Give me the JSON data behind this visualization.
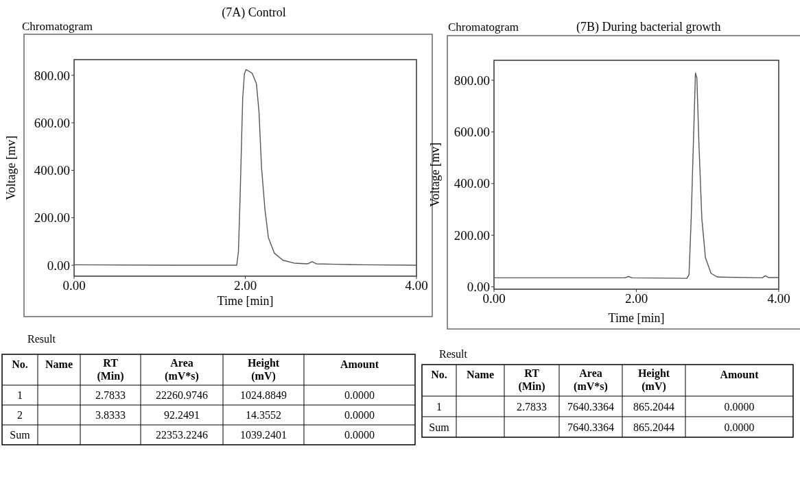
{
  "chart_data": [
    {
      "type": "line",
      "title": "(7A) Control",
      "subtitle": "Chromatogram",
      "xlabel": "Time [min]",
      "ylabel": "Voltage [mv]",
      "xlim": [
        0,
        4
      ],
      "ylim": [
        -46,
        866
      ],
      "xticks": [
        {
          "value": 0,
          "label": "0.00"
        },
        {
          "value": 2,
          "label": "2.00"
        },
        {
          "value": 4,
          "label": "4.00"
        }
      ],
      "yticks": [
        {
          "value": 0,
          "label": "0.00"
        },
        {
          "value": 200,
          "label": "200.00"
        },
        {
          "value": 400,
          "label": "400.00"
        },
        {
          "value": 600,
          "label": "600.00"
        },
        {
          "value": 800,
          "label": "800.00"
        }
      ],
      "series": [
        {
          "color": "#555555",
          "x": [
            0,
            1.42,
            1.9,
            1.92,
            1.94,
            1.97,
            1.99,
            2.01,
            2.08,
            2.13,
            2.16,
            2.19,
            2.23,
            2.27,
            2.34,
            2.44,
            2.57,
            2.73,
            2.78,
            2.83,
            3.06,
            3.39,
            4
          ],
          "values": [
            2,
            0,
            0,
            57,
            293,
            706,
            806,
            824,
            809,
            765,
            647,
            411,
            234,
            116,
            51,
            21,
            9,
            6,
            15,
            6,
            4,
            2,
            0
          ]
        }
      ]
    },
    {
      "type": "line",
      "title": "(7B) During bacterial growth",
      "subtitle": "Chromatogram",
      "xlabel": "Time [min]",
      "ylabel": "Voltage [mv]",
      "xlim": [
        0,
        4
      ],
      "ylim": [
        -9,
        877
      ],
      "xticks": [
        {
          "value": 0,
          "label": "0.00"
        },
        {
          "value": 2,
          "label": "2.00"
        },
        {
          "value": 4,
          "label": "4.00"
        }
      ],
      "yticks": [
        {
          "value": 0,
          "label": "0.00"
        },
        {
          "value": 200,
          "label": "200.00"
        },
        {
          "value": 400,
          "label": "400.00"
        },
        {
          "value": 600,
          "label": "600.00"
        },
        {
          "value": 800,
          "label": "800.00"
        }
      ],
      "series": [
        {
          "color": "#555555",
          "x": [
            0,
            1.84,
            1.89,
            1.94,
            2.71,
            2.74,
            2.77,
            2.81,
            2.83,
            2.85,
            2.88,
            2.92,
            2.97,
            3.05,
            3.14,
            3.77,
            3.81,
            3.86,
            4
          ],
          "values": [
            35,
            35,
            40,
            35,
            33,
            47,
            264,
            640,
            828,
            809,
            546,
            264,
            113,
            52,
            38,
            35,
            43,
            36,
            36
          ]
        }
      ]
    },
    {
      "type": "other",
      "title": "Result",
      "categories": [
        "No.",
        "Name",
        "RT (Min)",
        "Area (mV*s)",
        "Height (mV)",
        "Amount"
      ],
      "cell_labels": [
        [
          "1",
          null,
          "2.7833",
          "22260.9746",
          "1024.8849",
          "0.0000"
        ],
        [
          "2",
          null,
          "3.8333",
          "92.2491",
          "14.3552",
          "0.0000"
        ],
        [
          "Sum",
          null,
          null,
          "22353.2246",
          "1039.2401",
          "0.0000"
        ]
      ]
    },
    {
      "type": "other",
      "title": "Result",
      "categories": [
        "No.",
        "Name",
        "RT (Min)",
        "Area (mV*s)",
        "Height (mV)",
        "Amount"
      ],
      "cell_labels": [
        [
          "1",
          null,
          "2.7833",
          "7640.3364",
          "865.2044",
          "0.0000"
        ],
        [
          "Sum",
          null,
          null,
          "7640.3364",
          "865.2044",
          "0.0000"
        ]
      ]
    }
  ]
}
